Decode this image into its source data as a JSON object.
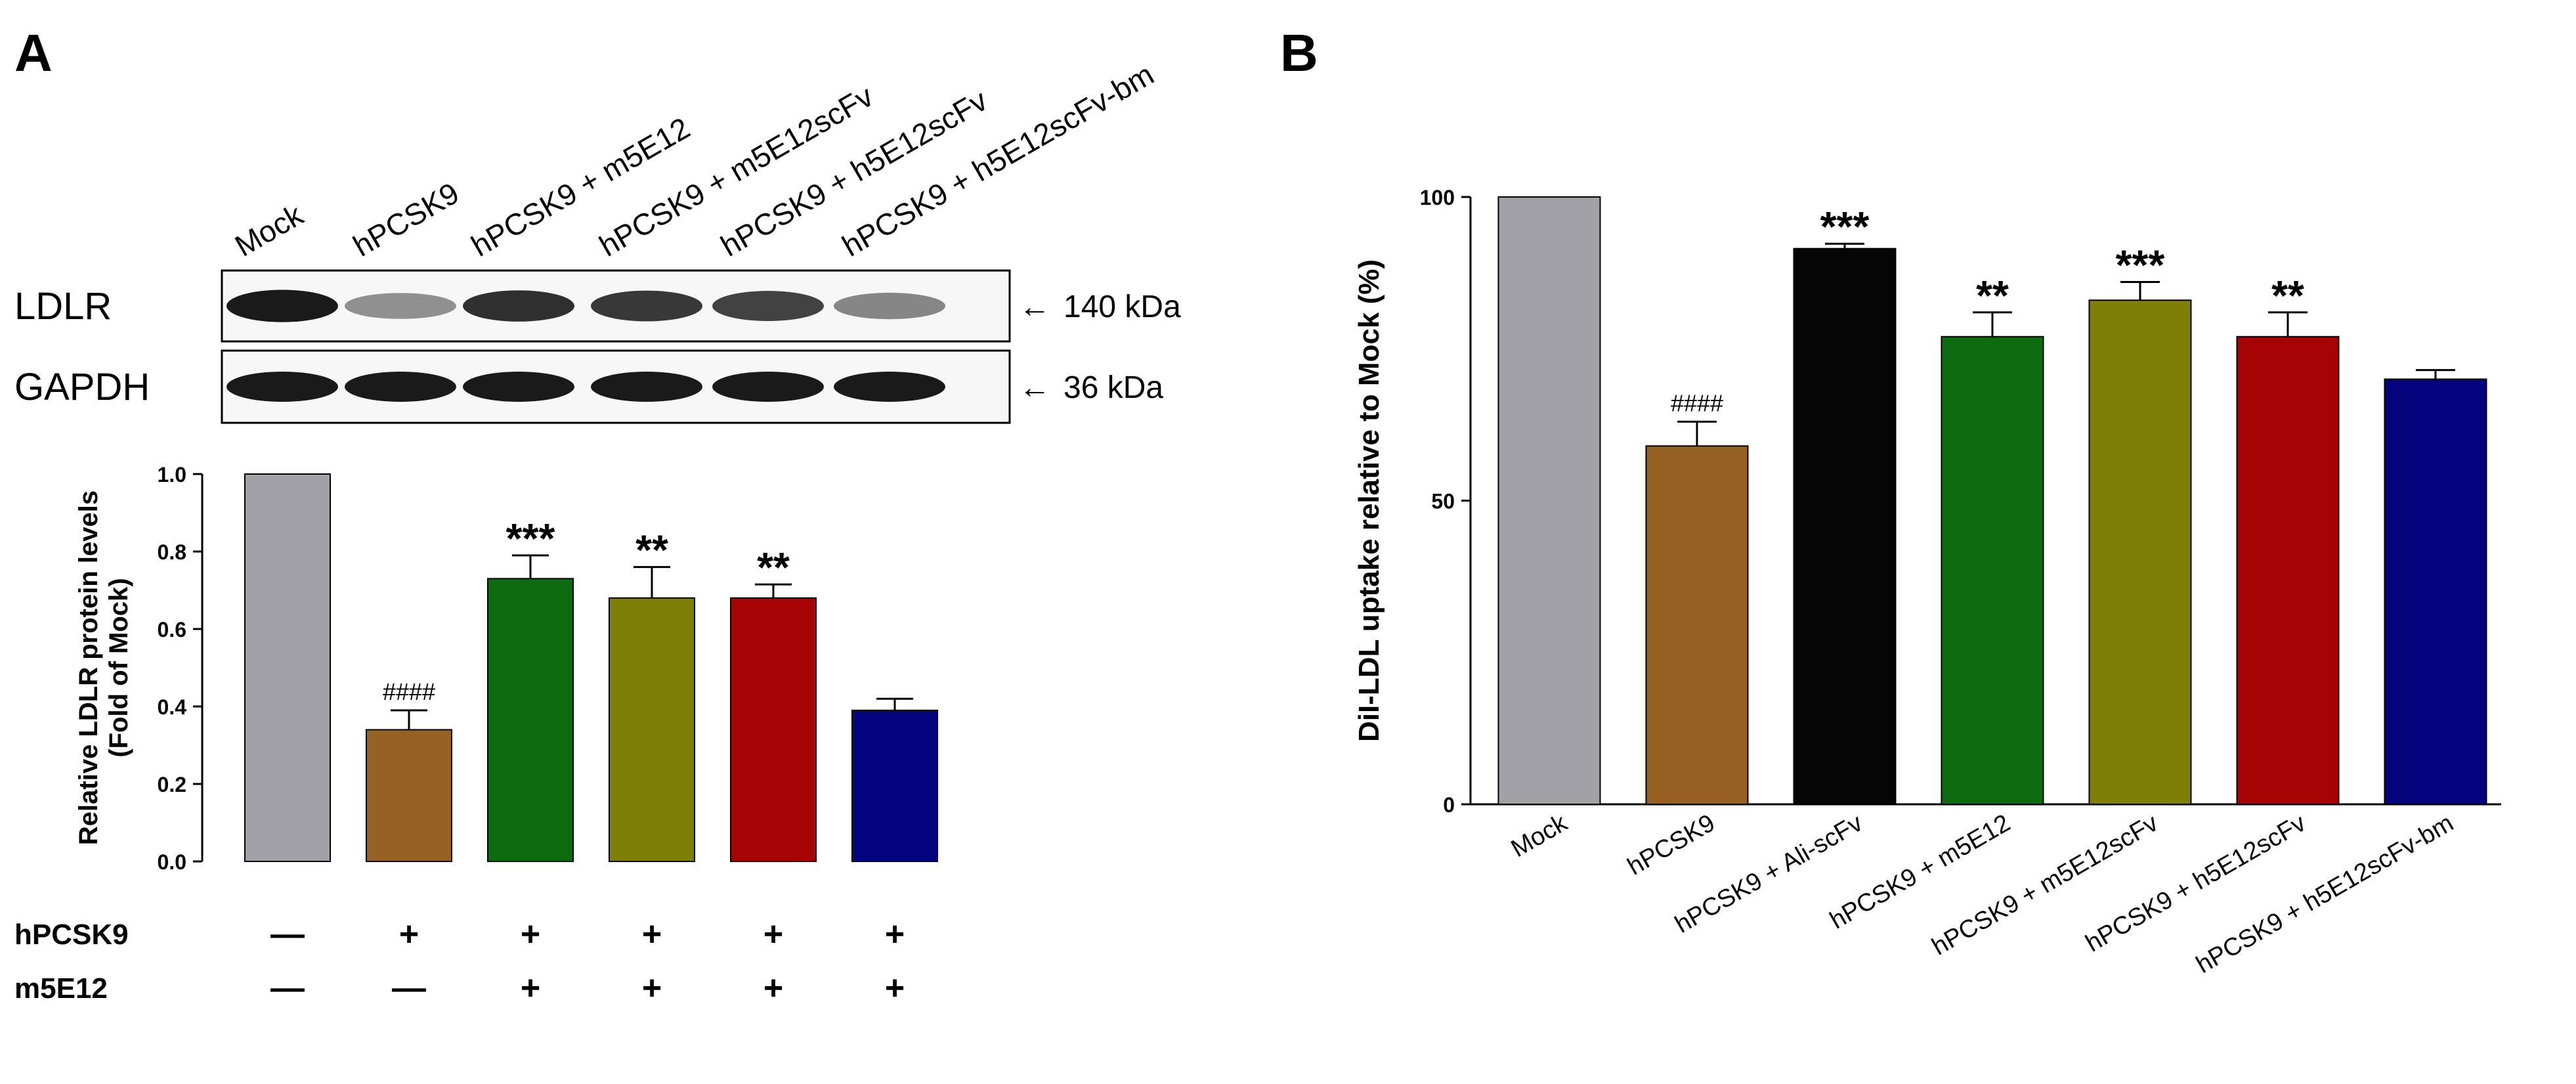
{
  "panels": {
    "a_letter": "A",
    "b_letter": "B"
  },
  "blot": {
    "lanes": [
      "Mock",
      "hPCSK9",
      "hPCSK9 + m5E12",
      "hPCSK9 + m5E12scFv",
      "hPCSK9 + h5E12scFv",
      "hPCSK9 + h5E12scFv-bm"
    ],
    "rows": [
      {
        "label": "LDLR",
        "size": "140 kDa",
        "band_intensity": [
          0.95,
          0.35,
          0.85,
          0.8,
          0.75,
          0.4
        ]
      },
      {
        "label": "GAPDH",
        "size": "36 kDa",
        "band_intensity": [
          0.95,
          0.95,
          0.95,
          0.95,
          0.95,
          0.95
        ]
      }
    ],
    "arrow_glyph": "←"
  },
  "treatment": {
    "rows": [
      {
        "label": "hPCSK9",
        "signs": [
          "—",
          "+",
          "+",
          "+",
          "+",
          "+"
        ]
      },
      {
        "label": "m5E12",
        "signs": [
          "—",
          "—",
          "+",
          "+",
          "+",
          "+"
        ]
      }
    ]
  },
  "colors": {
    "grey": "#a3a1a8",
    "brown": "#966123",
    "black": "#050505",
    "green": "#0c6b0e",
    "olive": "#7f7f08",
    "red": "#a50303",
    "navy": "#04047f"
  },
  "chart_data": [
    {
      "type": "bar",
      "panel": "A",
      "title": "",
      "xlabel": "",
      "ylabel": "Relative LDLR protein levels",
      "ylabel2": "(Fold of Mock)",
      "ylim": [
        0,
        1.0
      ],
      "yticks": [
        0.0,
        0.2,
        0.4,
        0.6,
        0.8,
        1.0
      ],
      "ytick_labels": [
        "0.0",
        "0.2",
        "0.4",
        "0.6",
        "0.8",
        "1.0"
      ],
      "categories": [
        "Mock",
        "hPCSK9",
        "hPCSK9 + m5E12",
        "hPCSK9 + m5E12scFv",
        "hPCSK9 + h5E12scFv",
        "hPCSK9 + h5E12scFv-bm"
      ],
      "values": [
        1.0,
        0.34,
        0.73,
        0.68,
        0.68,
        0.39
      ],
      "errors": [
        0,
        0.05,
        0.06,
        0.08,
        0.035,
        0.03
      ],
      "annotations": [
        "",
        "####",
        "***",
        "**",
        "**",
        ""
      ],
      "colors": [
        "#a3a1a8",
        "#966123",
        "#0c6b0e",
        "#7f7f08",
        "#a50303",
        "#04047f"
      ]
    },
    {
      "type": "bar",
      "panel": "B",
      "title": "",
      "xlabel": "",
      "ylabel": "DiI-LDL uptake relative to Mock (%)",
      "ylim": [
        0,
        100
      ],
      "yticks": [
        0,
        50,
        100
      ],
      "ytick_labels": [
        "0",
        "50",
        "100"
      ],
      "categories": [
        "Mock",
        "hPCSK9",
        "hPCSK9 + Ali-scFv",
        "hPCSK9 + m5E12",
        "hPCSK9 + m5E12scFv",
        "hPCSK9 + h5E12scFv",
        "hPCSK9 + h5E12scFv-bm"
      ],
      "values": [
        100,
        59,
        91.5,
        77,
        83,
        77,
        70
      ],
      "errors": [
        0,
        4,
        0.8,
        4,
        3,
        4,
        1.5
      ],
      "annotations": [
        "",
        "####",
        "***",
        "**",
        "***",
        "**",
        ""
      ],
      "colors": [
        "#a3a1a8",
        "#966123",
        "#050505",
        "#0c6b0e",
        "#7f7f08",
        "#a50303",
        "#04047f"
      ]
    }
  ]
}
